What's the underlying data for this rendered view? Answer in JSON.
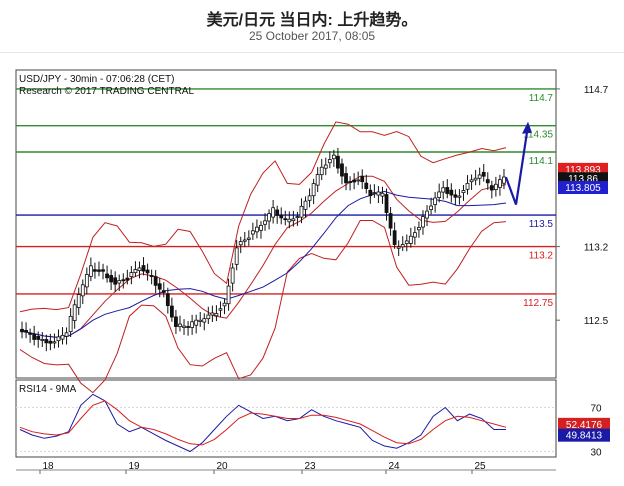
{
  "header": {
    "title": "美元/日元 当日内: 上升趋势。",
    "date": "25 October 2017, 08:05"
  },
  "chart_data": [
    {
      "type": "candlestick",
      "panel": "price",
      "info_line_1": "USD/JPY - 30min - 07:06:28 (CET)",
      "info_line_2": "Research © 2017 TRADING CENTRAL",
      "ylim": [
        111.95,
        114.88
      ],
      "y_ticks": [
        114.7,
        113.2,
        112.5
      ],
      "x_ticks": [
        "18",
        "19",
        "20",
        "23",
        "24",
        "25"
      ],
      "levels": [
        {
          "label": "114.7",
          "value": 114.7,
          "color": "#2e8b2e"
        },
        {
          "label": "114.35",
          "value": 114.35,
          "color": "#2e8b2e"
        },
        {
          "label": "114.1",
          "value": 114.1,
          "color": "#2e8b2e"
        },
        {
          "label": "113.5",
          "value": 113.5,
          "color": "#1a1aa6"
        },
        {
          "label": "113.2",
          "value": 113.2,
          "color": "#d42020"
        },
        {
          "label": "112.75",
          "value": 112.75,
          "color": "#d42020"
        }
      ],
      "price_badges": [
        {
          "label": "113.893",
          "value": 113.893,
          "color": "#e02020"
        },
        {
          "label": "113.86",
          "value": 113.86,
          "color": "#111111"
        },
        {
          "label": "113.805",
          "value": 113.805,
          "color": "#2020cc"
        }
      ],
      "close_path": [
        112.4,
        112.35,
        112.3,
        112.3,
        112.4,
        112.75,
        113.0,
        112.95,
        112.85,
        112.9,
        113.0,
        112.9,
        112.75,
        112.45,
        112.45,
        112.5,
        112.55,
        112.65,
        113.2,
        113.3,
        113.4,
        113.55,
        113.45,
        113.5,
        113.7,
        113.95,
        114.05,
        113.8,
        113.85,
        113.7,
        113.7,
        113.2,
        113.25,
        113.4,
        113.6,
        113.75,
        113.65,
        113.8,
        113.9,
        113.75,
        113.85
      ],
      "forecast_path": [
        113.86,
        113.6,
        114.35
      ],
      "colors": {
        "candles": "#111111",
        "bollinger": "#c02020",
        "ma_slow": "#1a1aa6",
        "forecast": "#1a1aa6",
        "background": "#ffffff"
      }
    },
    {
      "type": "line",
      "panel": "rsi",
      "label": "RSI14 - 9MA",
      "ylim": [
        25,
        95
      ],
      "y_ticks": [
        70,
        30
      ],
      "series": [
        {
          "name": "RSI14",
          "label": "49.8413",
          "last": 49.8413,
          "color": "#1a1aa6",
          "values": [
            50,
            45,
            42,
            44,
            48,
            72,
            82,
            76,
            55,
            48,
            52,
            46,
            40,
            35,
            30,
            38,
            50,
            62,
            72,
            66,
            60,
            62,
            58,
            60,
            68,
            62,
            58,
            55,
            52,
            40,
            35,
            33,
            38,
            45,
            62,
            70,
            58,
            64,
            60,
            50,
            50
          ]
        },
        {
          "name": "9MA",
          "label": "52.4176",
          "last": 52.4176,
          "color": "#d42020",
          "values": [
            52,
            48,
            46,
            45,
            47,
            60,
            72,
            76,
            68,
            58,
            52,
            50,
            46,
            41,
            37,
            36,
            41,
            50,
            60,
            65,
            64,
            62,
            60,
            60,
            63,
            63,
            61,
            58,
            55,
            49,
            43,
            38,
            37,
            41,
            50,
            58,
            62,
            61,
            58,
            55,
            52
          ]
        }
      ]
    }
  ]
}
